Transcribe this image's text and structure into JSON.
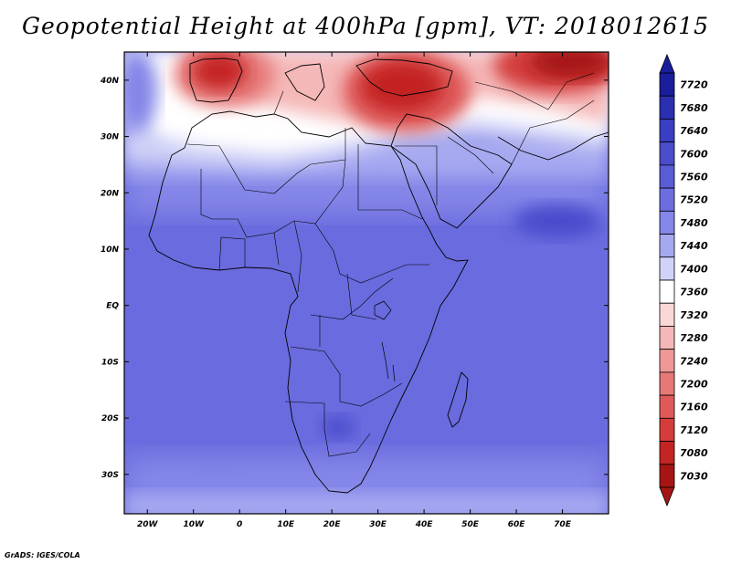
{
  "title": "Geopotential Height at 400hPa [gpm], VT: 2018012615",
  "credit": "GrADS: IGES/COLA",
  "map": {
    "lon_range": [
      -25,
      80
    ],
    "lat_range": [
      -37,
      45
    ],
    "lon_ticks": [
      {
        "value": -20,
        "label": "20W"
      },
      {
        "value": -10,
        "label": "10W"
      },
      {
        "value": 0,
        "label": "0"
      },
      {
        "value": 10,
        "label": "10E"
      },
      {
        "value": 20,
        "label": "20E"
      },
      {
        "value": 30,
        "label": "30E"
      },
      {
        "value": 40,
        "label": "40E"
      },
      {
        "value": 50,
        "label": "50E"
      },
      {
        "value": 60,
        "label": "60E"
      },
      {
        "value": 70,
        "label": "70E"
      }
    ],
    "lat_ticks": [
      {
        "value": 40,
        "label": "40N"
      },
      {
        "value": 30,
        "label": "30N"
      },
      {
        "value": 20,
        "label": "20N"
      },
      {
        "value": 10,
        "label": "10N"
      },
      {
        "value": 0,
        "label": "EQ"
      },
      {
        "value": -10,
        "label": "10S"
      },
      {
        "value": -20,
        "label": "20S"
      },
      {
        "value": -30,
        "label": "30S"
      }
    ]
  },
  "colorbar": {
    "levels": [
      {
        "label": "7720",
        "color": "#1a1d9c"
      },
      {
        "label": "7680",
        "color": "#2a2fb0"
      },
      {
        "label": "7640",
        "color": "#3a3ec0"
      },
      {
        "label": "7600",
        "color": "#4a4ccc"
      },
      {
        "label": "7560",
        "color": "#5a5cd6"
      },
      {
        "label": "7520",
        "color": "#6c6ddf"
      },
      {
        "label": "7480",
        "color": "#8486e8"
      },
      {
        "label": "7440",
        "color": "#a6a8f0"
      },
      {
        "label": "7400",
        "color": "#d0d2f7"
      },
      {
        "label": "7360",
        "color": "#ffffff"
      },
      {
        "label": "7320",
        "color": "#fbd8d8"
      },
      {
        "label": "7280",
        "color": "#f5b8b8"
      },
      {
        "label": "7240",
        "color": "#ee9898"
      },
      {
        "label": "7200",
        "color": "#e67878"
      },
      {
        "label": "7160",
        "color": "#de5a5a"
      },
      {
        "label": "7120",
        "color": "#d43c3c"
      },
      {
        "label": "7080",
        "color": "#c42424"
      },
      {
        "label": "7030",
        "color": "#a61515"
      }
    ]
  }
}
